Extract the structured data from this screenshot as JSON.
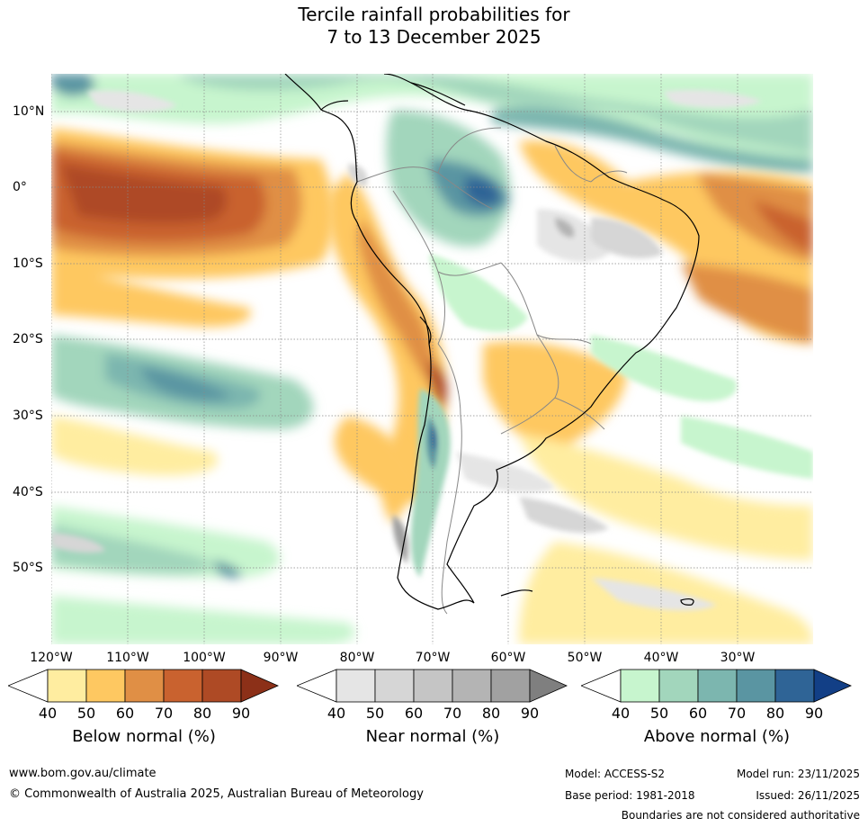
{
  "title": {
    "line1": "Tercile rainfall probabilities for",
    "line2": "7 to 13 December 2025"
  },
  "map": {
    "longitude_labels": [
      "120°W",
      "110°W",
      "100°W",
      "90°W",
      "80°W",
      "70°W",
      "60°W",
      "50°W",
      "40°W",
      "30°W"
    ],
    "latitude_labels": [
      "10°N",
      "0°",
      "10°S",
      "20°S",
      "30°S",
      "40°S",
      "50°S"
    ]
  },
  "legend": {
    "below": {
      "label": "Below normal (%)",
      "ticks": [
        "40",
        "50",
        "60",
        "70",
        "80",
        "90"
      ],
      "colors": [
        "#ffffff",
        "#ffeda0",
        "#fec861",
        "#e08f45",
        "#c9622f",
        "#ae4a25",
        "#8c3018"
      ]
    },
    "near": {
      "label": "Near normal (%)",
      "ticks": [
        "40",
        "50",
        "60",
        "70",
        "80",
        "90"
      ],
      "colors": [
        "#ffffff",
        "#e5e5e5",
        "#d6d6d6",
        "#c5c5c5",
        "#b4b4b4",
        "#a1a1a1",
        "#7f7f7f"
      ]
    },
    "above": {
      "label": "Above normal (%)",
      "ticks": [
        "40",
        "50",
        "60",
        "70",
        "80",
        "90"
      ],
      "colors": [
        "#ffffff",
        "#c7f5ce",
        "#a2d6bc",
        "#7cb6af",
        "#5a95a2",
        "#2f6496",
        "#123f86"
      ]
    }
  },
  "footer": {
    "website": "www.bom.gov.au/climate",
    "copyright": "© Commonwealth of Australia 2025, Australian Bureau of Meteorology",
    "model": "Model: ACCESS-S2",
    "base_period": "Base period: 1981-2018",
    "model_run": "Model run: 23/11/2025",
    "issued": "Issued: 26/11/2025",
    "boundaries_note": "Boundaries are not considered authoritative"
  }
}
